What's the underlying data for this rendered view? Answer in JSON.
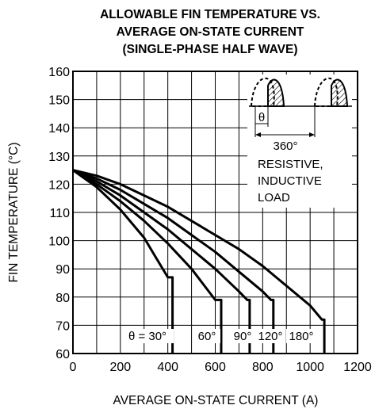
{
  "chart_data": {
    "type": "line",
    "title_lines": [
      "ALLOWABLE FIN TEMPERATURE VS.",
      "AVERAGE ON-STATE CURRENT",
      "(SINGLE-PHASE HALF WAVE)"
    ],
    "xlabel": "AVERAGE ON-STATE CURRENT  (A)",
    "ylabel": "FIN TEMPERATURE  (°C)",
    "xlim": [
      0,
      1200
    ],
    "ylim": [
      60,
      160
    ],
    "x_ticks": [
      0,
      200,
      400,
      600,
      800,
      1000,
      1200
    ],
    "x_tick_labels": [
      "0",
      "200",
      "400",
      "600",
      "800",
      "1000",
      "1200"
    ],
    "y_ticks": [
      60,
      70,
      80,
      90,
      100,
      110,
      120,
      130,
      140,
      150,
      160
    ],
    "y_tick_labels": [
      "60",
      "70",
      "80",
      "90",
      "100",
      "110",
      "120",
      "130",
      "140",
      "150",
      "160"
    ],
    "x_grid_step": 100,
    "grid": true,
    "series": [
      {
        "name": "θ = 30°",
        "points": [
          [
            0,
            125
          ],
          [
            100,
            119
          ],
          [
            200,
            111
          ],
          [
            300,
            101
          ],
          [
            350,
            94
          ],
          [
            400,
            87
          ],
          [
            420,
            87
          ],
          [
            420,
            60
          ]
        ]
      },
      {
        "name": "60°",
        "points": [
          [
            0,
            125
          ],
          [
            100,
            120
          ],
          [
            200,
            114
          ],
          [
            300,
            107
          ],
          [
            400,
            99
          ],
          [
            500,
            90
          ],
          [
            600,
            79
          ],
          [
            625,
            79
          ],
          [
            625,
            60
          ]
        ]
      },
      {
        "name": "90°",
        "points": [
          [
            0,
            125
          ],
          [
            100,
            121
          ],
          [
            200,
            116
          ],
          [
            300,
            110
          ],
          [
            400,
            104
          ],
          [
            500,
            97
          ],
          [
            600,
            90
          ],
          [
            700,
            82
          ],
          [
            735,
            79
          ],
          [
            745,
            79
          ],
          [
            745,
            60
          ]
        ]
      },
      {
        "name": "120°",
        "points": [
          [
            0,
            125
          ],
          [
            100,
            122
          ],
          [
            200,
            118
          ],
          [
            300,
            113
          ],
          [
            400,
            108
          ],
          [
            500,
            102
          ],
          [
            600,
            96
          ],
          [
            700,
            89
          ],
          [
            800,
            82
          ],
          [
            835,
            79
          ],
          [
            845,
            79
          ],
          [
            845,
            60
          ]
        ]
      },
      {
        "name": "180°",
        "points": [
          [
            0,
            125
          ],
          [
            100,
            123
          ],
          [
            200,
            120
          ],
          [
            300,
            116
          ],
          [
            400,
            112
          ],
          [
            500,
            107
          ],
          [
            600,
            102
          ],
          [
            700,
            97
          ],
          [
            800,
            91
          ],
          [
            900,
            84
          ],
          [
            1000,
            77
          ],
          [
            1050,
            72
          ],
          [
            1060,
            72
          ],
          [
            1060,
            60
          ]
        ]
      }
    ],
    "inset": {
      "theta_label": "θ",
      "period_label": "360°",
      "load_lines": [
        "RESISTIVE,",
        "INDUCTIVE",
        "LOAD"
      ]
    }
  }
}
